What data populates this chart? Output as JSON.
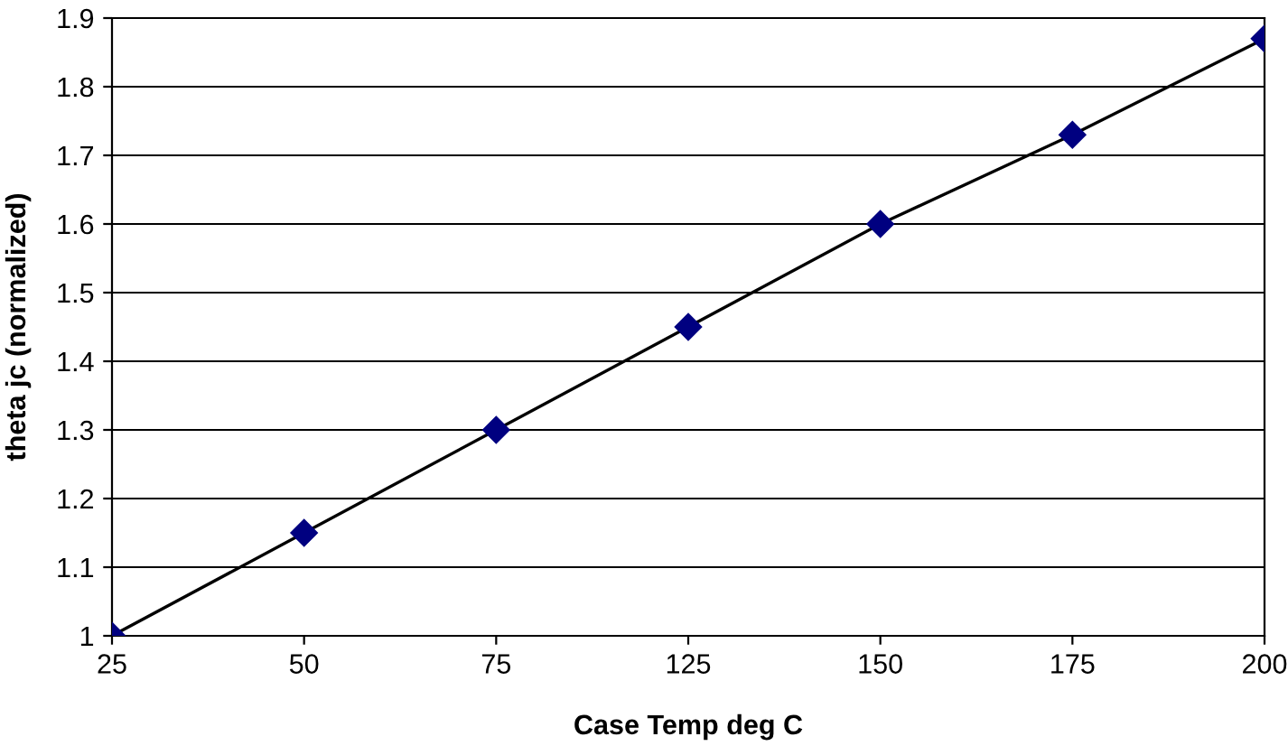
{
  "chart_data": {
    "type": "line",
    "xlabel": "Case Temp deg C",
    "ylabel": "theta jc (normalized)",
    "categories": [
      "25",
      "50",
      "75",
      "125",
      "150",
      "175",
      "200"
    ],
    "series": [
      {
        "color": "#000080",
        "values": [
          1.0,
          1.15,
          1.3,
          1.45,
          1.6,
          1.73,
          1.87
        ]
      }
    ],
    "ylim": [
      1,
      1.9
    ],
    "yticks": [
      1,
      1.1,
      1.2,
      1.3,
      1.4,
      1.5,
      1.6,
      1.7,
      1.8,
      1.9
    ],
    "grid": "y",
    "marker": "diamond",
    "line_style": "solid",
    "legend": false
  }
}
